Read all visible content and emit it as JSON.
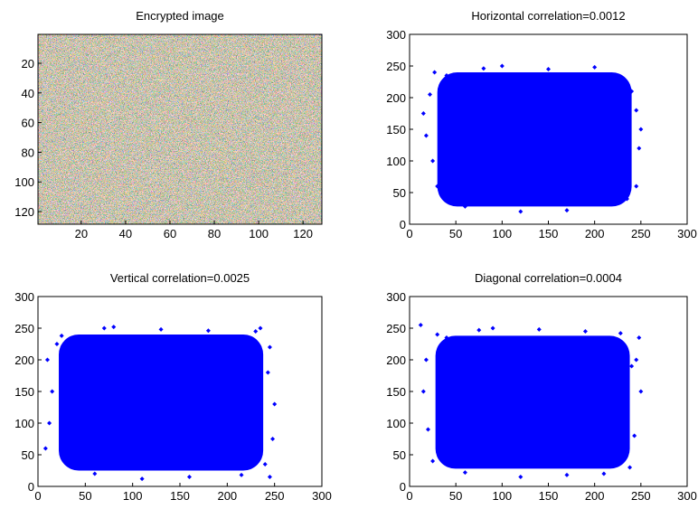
{
  "chart_data": [
    {
      "type": "image",
      "title": "Encrypted image",
      "xlim": [
        0.5,
        128.5
      ],
      "ylim": [
        0.5,
        128.5
      ],
      "reverse_y": true,
      "xticks": [
        20,
        40,
        60,
        80,
        100,
        120
      ],
      "yticks": [
        20,
        40,
        60,
        80,
        100,
        120
      ]
    },
    {
      "type": "scatter",
      "title": "Horizontal correlation=0.0012",
      "color": "#0000ff",
      "xlim": [
        0,
        300
      ],
      "ylim": [
        0,
        300
      ],
      "xticks": [
        0,
        50,
        100,
        150,
        200,
        250,
        300
      ],
      "yticks": [
        0,
        50,
        100,
        150,
        200,
        250,
        300
      ],
      "dense_region": {
        "x": [
          30,
          240
        ],
        "y": [
          28,
          240
        ]
      },
      "x": [
        15,
        25,
        18,
        30,
        22,
        240,
        248,
        245,
        235,
        250,
        100,
        150,
        200,
        120,
        60,
        170,
        230,
        27,
        245,
        80,
        210,
        40
      ],
      "y": [
        175,
        100,
        140,
        60,
        205,
        210,
        120,
        60,
        40,
        150,
        250,
        245,
        248,
        20,
        28,
        22,
        230,
        240,
        180,
        246,
        38,
        235
      ]
    },
    {
      "type": "scatter",
      "title": "Vertical correlation=0.0025",
      "color": "#0000ff",
      "xlim": [
        0,
        300
      ],
      "ylim": [
        0,
        300
      ],
      "xticks": [
        0,
        50,
        100,
        150,
        200,
        250,
        300
      ],
      "yticks": [
        0,
        50,
        100,
        150,
        200,
        250,
        300
      ],
      "dense_region": {
        "x": [
          22,
          238
        ],
        "y": [
          25,
          240
        ]
      },
      "x": [
        8,
        12,
        15,
        10,
        20,
        245,
        250,
        248,
        240,
        243,
        80,
        130,
        180,
        110,
        60,
        160,
        230,
        25,
        235,
        70,
        215,
        245
      ],
      "y": [
        60,
        100,
        150,
        200,
        225,
        220,
        130,
        75,
        35,
        180,
        252,
        248,
        246,
        12,
        20,
        15,
        245,
        238,
        250,
        250,
        18,
        15
      ]
    },
    {
      "type": "scatter",
      "title": "Diagonal correlation=0.0004",
      "color": "#0000ff",
      "xlim": [
        0,
        300
      ],
      "ylim": [
        0,
        300
      ],
      "xticks": [
        0,
        50,
        100,
        150,
        200,
        250,
        300
      ],
      "yticks": [
        0,
        50,
        100,
        150,
        200,
        250,
        300
      ],
      "dense_region": {
        "x": [
          28,
          238
        ],
        "y": [
          28,
          238
        ]
      },
      "x": [
        12,
        18,
        15,
        20,
        25,
        248,
        250,
        243,
        238,
        245,
        90,
        140,
        190,
        120,
        60,
        170,
        228,
        30,
        240,
        75,
        210,
        40
      ],
      "y": [
        255,
        200,
        150,
        90,
        40,
        235,
        150,
        80,
        30,
        200,
        250,
        248,
        245,
        15,
        22,
        18,
        242,
        240,
        190,
        247,
        20,
        235
      ]
    }
  ]
}
